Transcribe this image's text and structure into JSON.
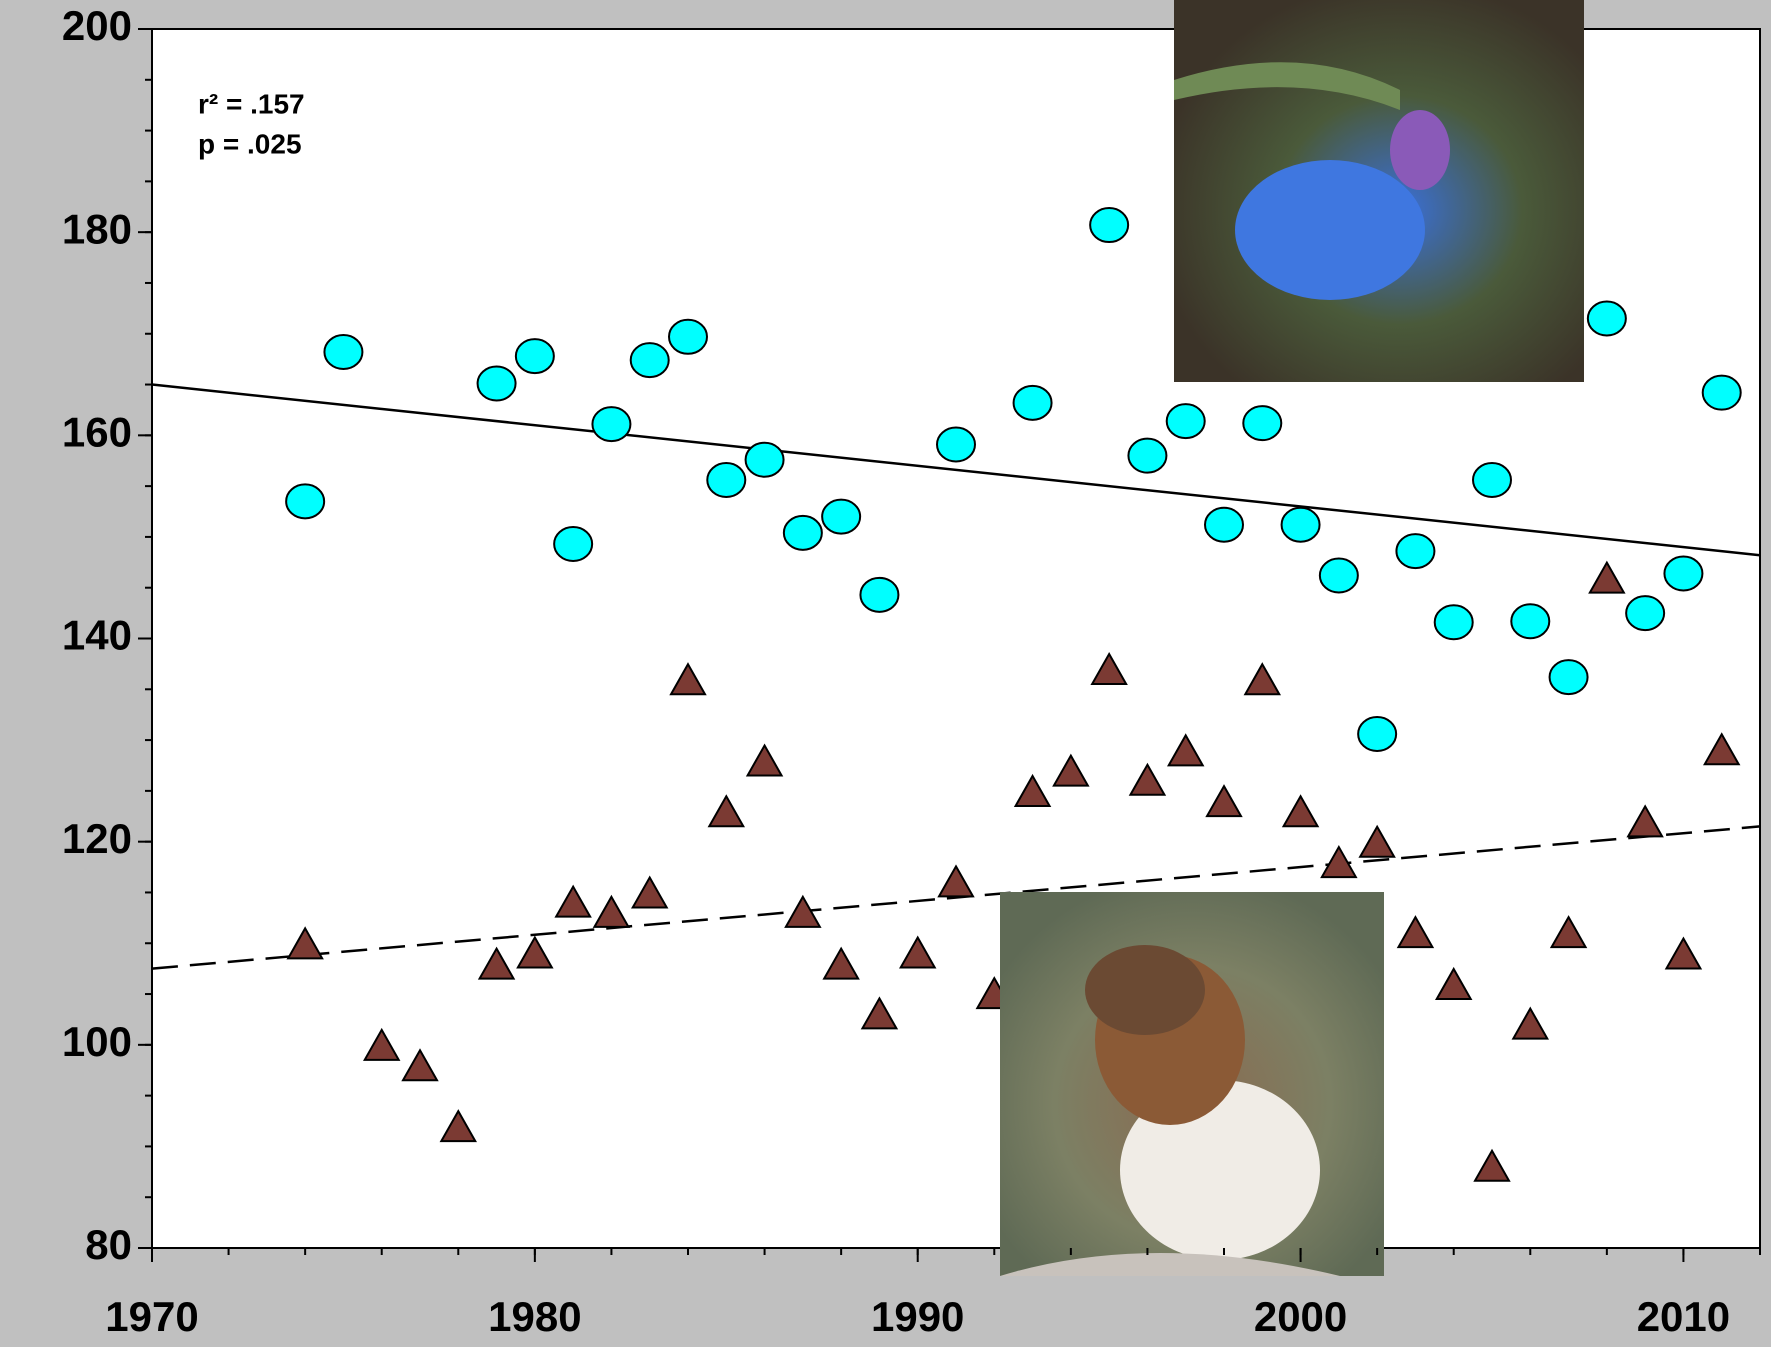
{
  "chart_data": {
    "type": "scatter",
    "annotations": [
      "r² = .157",
      "p = .025"
    ],
    "xlim": [
      1970,
      2012
    ],
    "xticks": [
      1970,
      1980,
      1990,
      2000,
      2010
    ],
    "ylim": [
      80,
      200
    ],
    "yticks": [
      80,
      100,
      120,
      140,
      160,
      180,
      200
    ],
    "series": [
      {
        "marker": "circle",
        "color": "#00ffff",
        "x": [
          1974,
          1975,
          1979,
          1980,
          1981,
          1982,
          1983,
          1984,
          1985,
          1986,
          1987,
          1988,
          1989,
          1991,
          1993,
          1995,
          1996,
          1997,
          1998,
          1999,
          2000,
          2001,
          2002,
          2003,
          2004,
          2005,
          2006,
          2007,
          2008,
          2009,
          2010,
          2011
        ],
        "values": [
          153.5,
          168.2,
          165.1,
          167.8,
          149.3,
          161.1,
          167.4,
          169.7,
          155.6,
          157.6,
          150.4,
          152,
          144.3,
          159.1,
          163.2,
          180.7,
          158,
          161.4,
          151.2,
          161.2,
          151.2,
          146.2,
          130.6,
          148.6,
          141.6,
          155.6,
          141.7,
          136.2,
          171.5,
          142.5,
          146.4,
          164.2
        ]
      },
      {
        "marker": "triangle",
        "color": "#7b3a33",
        "x": [
          1974,
          1976,
          1977,
          1978,
          1979,
          1980,
          1981,
          1982,
          1983,
          1984,
          1985,
          1986,
          1987,
          1988,
          1989,
          1990,
          1991,
          1992,
          1993,
          1994,
          1995,
          1996,
          1997,
          1998,
          1999,
          2000,
          2001,
          2002,
          2003,
          2004,
          2005,
          2006,
          2007,
          2008,
          2009,
          2010,
          2011
        ],
        "values": [
          109.5,
          99.5,
          97.5,
          91.5,
          107.5,
          108.6,
          113.6,
          112.6,
          114.5,
          135.5,
          122.5,
          127.5,
          112.6,
          107.5,
          102.6,
          108.6,
          115.6,
          104.6,
          124.5,
          126.5,
          136.5,
          125.6,
          128.5,
          123.5,
          135.5,
          122.5,
          117.5,
          119.5,
          110.6,
          105.5,
          87.6,
          101.6,
          110.6,
          145.5,
          121.5,
          108.5,
          128.6
        ]
      }
    ],
    "trend_lines": [
      {
        "dash": false,
        "x": [
          1970,
          2012
        ],
        "values": [
          165,
          148.2
        ]
      },
      {
        "dash": true,
        "x": [
          1970,
          2012
        ],
        "values": [
          107.5,
          121.5
        ]
      }
    ]
  }
}
